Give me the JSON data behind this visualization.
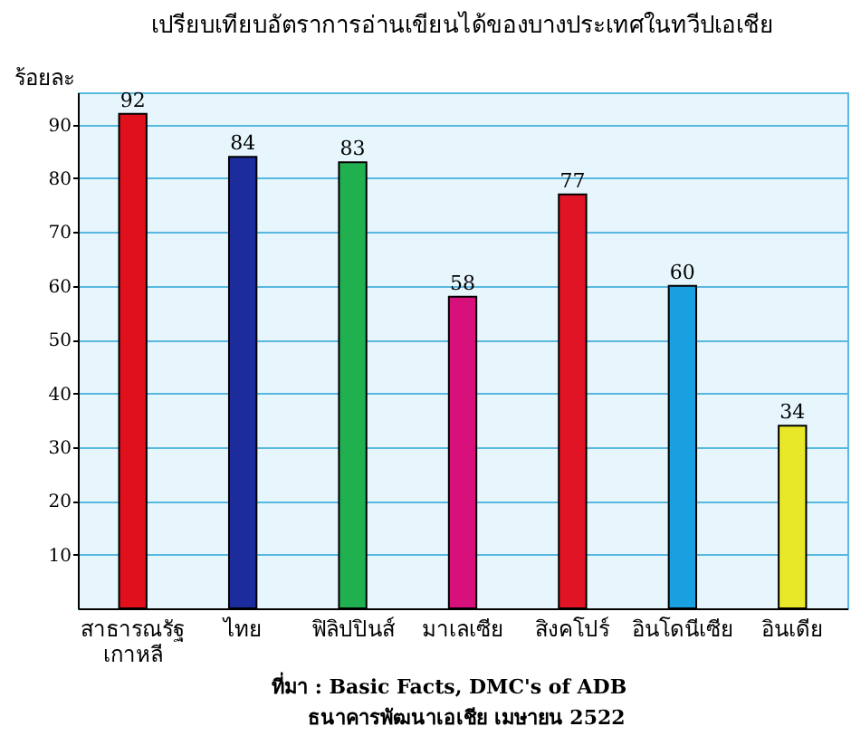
{
  "chart_data": {
    "type": "bar",
    "title": "เปรียบเทียบอัตราการอ่านเขียนได้ของบางประเทศในทวีปเอเชีย",
    "ylabel": "ร้อยละ",
    "categories": [
      "สาธารณรัฐ\nเกาหลี",
      "ไทย",
      "ฟิลิปปินส์",
      "มาเลเซีย",
      "สิงคโปร์",
      "อินโดนีเซีย",
      "อินเดีย"
    ],
    "values": [
      92,
      84,
      83,
      58,
      77,
      60,
      34
    ],
    "colors": [
      "#e0101c",
      "#1c2c9c",
      "#20b050",
      "#d8107c",
      "#e01424",
      "#18a0e0",
      "#e8e828"
    ],
    "ylim": [
      0,
      96
    ],
    "yticks": [
      10,
      20,
      30,
      40,
      50,
      60,
      70,
      80,
      90
    ],
    "grid": true,
    "data_labels": true,
    "annotations": [
      "ที่มา : Basic Facts, DMC's of ADB",
      "ธนาคารพัฒนาเอเชีย เมษายน 2522"
    ]
  }
}
